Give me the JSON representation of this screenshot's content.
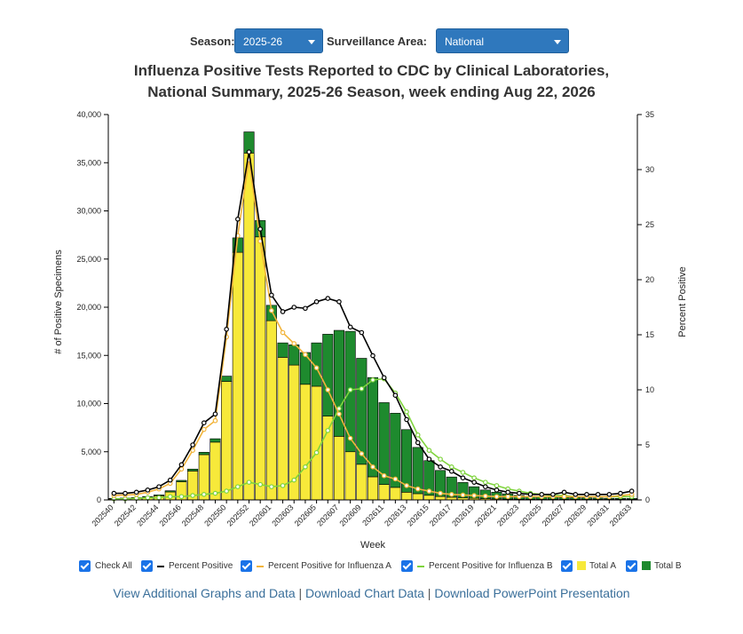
{
  "controls": {
    "season_label": "Season:",
    "season_value": "2025-26",
    "area_label": "Surveillance Area:",
    "area_value": "National"
  },
  "title_line1": "Influenza Positive Tests Reported to CDC by Clinical Laboratories,",
  "title_line2": "National Summary, 2025-26 Season, week ending Aug 22, 2026",
  "legend": {
    "check_all": "Check All",
    "percent_positive": "Percent Positive",
    "percent_a": "Percent Positive for Influenza A",
    "percent_b": "Percent Positive for Influenza B",
    "total_a": "Total A",
    "total_b": "Total B"
  },
  "links": {
    "additional": "View Additional Graphs and Data",
    "download_data": "Download Chart Data",
    "download_ppt": "Download PowerPoint Presentation",
    "separator": "|"
  },
  "colors": {
    "total_a": "#f7e93a",
    "total_b": "#1e8a2e",
    "percent_positive": "#000000",
    "percent_a": "#f2b43a",
    "percent_b": "#7fd43d"
  },
  "chart_data": {
    "type": "bar",
    "stacked": true,
    "xlabel": "Week",
    "ylabel": "# of Positive Specimens",
    "y2label": "Percent Positive",
    "ylim": [
      0,
      40000
    ],
    "y2lim": [
      0,
      35
    ],
    "yticks": [
      "0",
      "5,000",
      "10,000",
      "15,000",
      "20,000",
      "25,000",
      "30,000",
      "35,000",
      "40,000"
    ],
    "y2ticks": [
      "0",
      "5",
      "10",
      "15",
      "20",
      "25",
      "30",
      "35"
    ],
    "xtick_labels": [
      "202540",
      "202542",
      "202544",
      "202546",
      "202548",
      "202550",
      "202552",
      "202601",
      "202603",
      "202605",
      "202607",
      "202609",
      "202611",
      "202613",
      "202615",
      "202617",
      "202619",
      "202621",
      "202623",
      "202625",
      "202627",
      "202629",
      "202631",
      "202633"
    ],
    "categories": [
      "202540",
      "202541",
      "202542",
      "202543",
      "202544",
      "202545",
      "202546",
      "202547",
      "202548",
      "202549",
      "202550",
      "202551",
      "202552",
      "202553",
      "202601",
      "202602",
      "202603",
      "202604",
      "202605",
      "202606",
      "202607",
      "202608",
      "202609",
      "202610",
      "202611",
      "202612",
      "202613",
      "202614",
      "202615",
      "202616",
      "202617",
      "202618",
      "202619",
      "202620",
      "202621",
      "202622",
      "202623",
      "202624",
      "202625",
      "202626",
      "202627",
      "202628",
      "202629",
      "202630",
      "202631",
      "202632",
      "202633"
    ],
    "series": [
      {
        "name": "Total A",
        "values": [
          100,
          130,
          180,
          270,
          430,
          830,
          1880,
          3000,
          4700,
          6000,
          12300,
          25700,
          36000,
          27300,
          18600,
          14800,
          14000,
          12000,
          11800,
          8700,
          6600,
          5000,
          3700,
          2400,
          1600,
          1300,
          800,
          650,
          480,
          360,
          280,
          210,
          170,
          130,
          100,
          80,
          70,
          60,
          60,
          60,
          60,
          60,
          60,
          60,
          60,
          60,
          60
        ]
      },
      {
        "name": "Total B",
        "values": [
          50,
          60,
          70,
          80,
          90,
          120,
          150,
          200,
          250,
          350,
          550,
          1500,
          2200,
          1700,
          1600,
          1500,
          2100,
          3300,
          4500,
          8500,
          11000,
          12500,
          11000,
          10300,
          8500,
          7700,
          6500,
          4800,
          3600,
          2700,
          2100,
          1600,
          1200,
          900,
          700,
          550,
          400,
          330,
          280,
          230,
          200,
          180,
          150,
          130,
          110,
          100,
          90
        ]
      },
      {
        "name": "Percent Positive",
        "values": [
          0.6,
          0.6,
          0.7,
          0.9,
          1.2,
          1.8,
          3.2,
          5.0,
          7.0,
          7.8,
          15.5,
          25.5,
          31.6,
          24.6,
          18.6,
          17.1,
          17.5,
          17.4,
          18.0,
          18.3,
          18.0,
          15.7,
          15.2,
          13.1,
          11.1,
          9.5,
          7.3,
          5.2,
          3.7,
          3.0,
          2.6,
          2.0,
          1.6,
          1.2,
          0.9,
          0.7,
          0.6,
          0.5,
          0.5,
          0.5,
          0.7,
          0.5,
          0.5,
          0.5,
          0.5,
          0.6,
          0.8
        ]
      },
      {
        "name": "Percent Positive for Influenza A",
        "values": [
          0.4,
          0.45,
          0.5,
          0.7,
          1.0,
          1.5,
          2.8,
          4.5,
          6.4,
          7.2,
          14.8,
          24.0,
          30.9,
          23.5,
          17.2,
          15.2,
          14.2,
          13.2,
          12.0,
          10.0,
          7.8,
          5.6,
          4.2,
          3.0,
          2.2,
          1.9,
          1.3,
          1.0,
          0.8,
          0.6,
          0.5,
          0.45,
          0.4,
          0.35,
          0.3,
          0.3,
          0.3,
          0.3,
          0.3,
          0.3,
          0.3,
          0.3,
          0.3,
          0.3,
          0.3,
          0.4,
          0.5
        ]
      },
      {
        "name": "Percent Positive for Influenza B",
        "values": [
          0.1,
          0.1,
          0.15,
          0.2,
          0.2,
          0.3,
          0.3,
          0.4,
          0.5,
          0.6,
          0.8,
          1.2,
          1.6,
          1.4,
          1.2,
          1.3,
          1.8,
          3.0,
          4.3,
          6.3,
          8.3,
          10.0,
          10.1,
          10.9,
          11.0,
          9.7,
          8.0,
          5.9,
          4.5,
          3.7,
          3.0,
          2.5,
          2.0,
          1.6,
          1.3,
          1.0,
          0.8,
          0.6,
          0.5,
          0.4,
          0.4,
          0.3,
          0.3,
          0.3,
          0.3,
          0.3,
          0.3
        ]
      }
    ]
  }
}
